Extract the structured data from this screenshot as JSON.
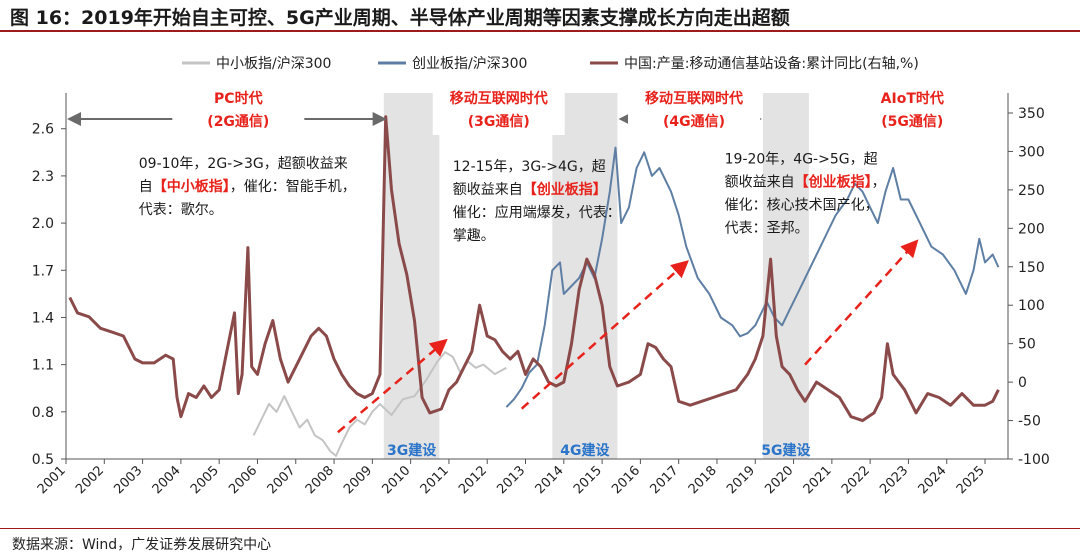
{
  "page": {
    "title": "图 16：2019年开始自主可控、5G产业周期、半导体产业周期等因素支撑成长方向走出超额",
    "source": "数据来源：Wind，广发证券发展研究中心"
  },
  "colors": {
    "series_sme": "#c4c4c4",
    "series_gem": "#5e7fa3",
    "series_base": "#8b4a4a",
    "shade": "#e3e3e3",
    "annotation_red": "#e8221b",
    "annotation_blue": "#2a74c9",
    "arrow_gray": "#6a6a6a"
  },
  "chart_data": {
    "type": "line",
    "title": "",
    "xlabel": "",
    "ylabel_left": "",
    "ylabel_right": "",
    "xlim": [
      2001.0,
      2025.6
    ],
    "ylim_left": [
      0.5,
      2.7
    ],
    "ylim_right": [
      -100,
      350
    ],
    "x_ticks": [
      "2001",
      "2002",
      "2003",
      "2004",
      "2005",
      "2006",
      "2007",
      "2008",
      "2009",
      "2010",
      "2011",
      "2012",
      "2013",
      "2014",
      "2015",
      "2016",
      "2017",
      "2018",
      "2019",
      "2020",
      "2021",
      "2022",
      "2023",
      "2024",
      "2025"
    ],
    "y_ticks_left": [
      "0.5",
      "0.8",
      "1.1",
      "1.4",
      "1.7",
      "2.0",
      "2.3",
      "2.6"
    ],
    "y_ticks_right": [
      "-100",
      "-50",
      "0",
      "50",
      "100",
      "150",
      "200",
      "250",
      "300",
      "350"
    ],
    "grid": false,
    "legend_position": "top",
    "series": [
      {
        "name": "中小板指/沪深300",
        "axis": "left",
        "color_key": "series_sme",
        "points": [
          [
            2005.9,
            0.65
          ],
          [
            2006.1,
            0.75
          ],
          [
            2006.3,
            0.85
          ],
          [
            2006.5,
            0.8
          ],
          [
            2006.7,
            0.9
          ],
          [
            2006.9,
            0.8
          ],
          [
            2007.1,
            0.7
          ],
          [
            2007.3,
            0.75
          ],
          [
            2007.5,
            0.65
          ],
          [
            2007.7,
            0.62
          ],
          [
            2007.9,
            0.55
          ],
          [
            2008.05,
            0.52
          ],
          [
            2008.2,
            0.6
          ],
          [
            2008.4,
            0.7
          ],
          [
            2008.6,
            0.75
          ],
          [
            2008.8,
            0.72
          ],
          [
            2009.0,
            0.8
          ],
          [
            2009.2,
            0.85
          ],
          [
            2009.5,
            0.78
          ],
          [
            2009.8,
            0.88
          ],
          [
            2010.1,
            0.9
          ],
          [
            2010.4,
            1.0
          ],
          [
            2010.7,
            1.12
          ],
          [
            2010.9,
            1.18
          ],
          [
            2011.1,
            1.15
          ],
          [
            2011.3,
            1.05
          ],
          [
            2011.5,
            1.12
          ],
          [
            2011.7,
            1.08
          ],
          [
            2011.9,
            1.1
          ],
          [
            2012.2,
            1.04
          ],
          [
            2012.5,
            1.08
          ]
        ]
      },
      {
        "name": "创业板指/沪深300",
        "axis": "left",
        "color_key": "series_gem",
        "points": [
          [
            2012.5,
            0.83
          ],
          [
            2012.7,
            0.88
          ],
          [
            2012.9,
            0.95
          ],
          [
            2013.1,
            1.05
          ],
          [
            2013.3,
            1.1
          ],
          [
            2013.5,
            1.35
          ],
          [
            2013.7,
            1.7
          ],
          [
            2013.9,
            1.75
          ],
          [
            2014.0,
            1.55
          ],
          [
            2014.2,
            1.6
          ],
          [
            2014.4,
            1.65
          ],
          [
            2014.6,
            1.75
          ],
          [
            2014.8,
            1.65
          ],
          [
            2015.0,
            1.9
          ],
          [
            2015.2,
            2.2
          ],
          [
            2015.35,
            2.48
          ],
          [
            2015.5,
            2.0
          ],
          [
            2015.7,
            2.1
          ],
          [
            2015.9,
            2.35
          ],
          [
            2016.1,
            2.45
          ],
          [
            2016.3,
            2.3
          ],
          [
            2016.5,
            2.35
          ],
          [
            2016.8,
            2.2
          ],
          [
            2017.0,
            2.05
          ],
          [
            2017.2,
            1.85
          ],
          [
            2017.5,
            1.65
          ],
          [
            2017.8,
            1.55
          ],
          [
            2018.1,
            1.4
          ],
          [
            2018.4,
            1.35
          ],
          [
            2018.6,
            1.28
          ],
          [
            2018.8,
            1.3
          ],
          [
            2019.0,
            1.35
          ],
          [
            2019.3,
            1.5
          ],
          [
            2019.5,
            1.4
          ],
          [
            2019.7,
            1.35
          ],
          [
            2019.9,
            1.45
          ],
          [
            2020.1,
            1.55
          ],
          [
            2020.4,
            1.7
          ],
          [
            2020.7,
            1.85
          ],
          [
            2020.9,
            1.95
          ],
          [
            2021.1,
            2.05
          ],
          [
            2021.4,
            2.15
          ],
          [
            2021.6,
            2.25
          ],
          [
            2021.8,
            2.2
          ],
          [
            2022.0,
            2.1
          ],
          [
            2022.2,
            2.0
          ],
          [
            2022.4,
            2.2
          ],
          [
            2022.6,
            2.35
          ],
          [
            2022.8,
            2.15
          ],
          [
            2023.0,
            2.15
          ],
          [
            2023.3,
            2.0
          ],
          [
            2023.6,
            1.85
          ],
          [
            2023.9,
            1.8
          ],
          [
            2024.2,
            1.7
          ],
          [
            2024.5,
            1.55
          ],
          [
            2024.7,
            1.7
          ],
          [
            2024.85,
            1.9
          ],
          [
            2025.0,
            1.75
          ],
          [
            2025.2,
            1.8
          ],
          [
            2025.35,
            1.72
          ]
        ]
      },
      {
        "name": "中国:产量:移动通信基站设备:累计同比(右轴,%)",
        "axis": "right",
        "color_key": "series_base",
        "points": [
          [
            2001.1,
            110
          ],
          [
            2001.3,
            90
          ],
          [
            2001.6,
            85
          ],
          [
            2001.9,
            70
          ],
          [
            2002.2,
            65
          ],
          [
            2002.5,
            60
          ],
          [
            2002.8,
            30
          ],
          [
            2003.0,
            25
          ],
          [
            2003.3,
            25
          ],
          [
            2003.6,
            35
          ],
          [
            2003.8,
            30
          ],
          [
            2003.9,
            -20
          ],
          [
            2004.0,
            -45
          ],
          [
            2004.2,
            -15
          ],
          [
            2004.4,
            -20
          ],
          [
            2004.6,
            -5
          ],
          [
            2004.8,
            -20
          ],
          [
            2005.0,
            -10
          ],
          [
            2005.2,
            40
          ],
          [
            2005.4,
            90
          ],
          [
            2005.5,
            -15
          ],
          [
            2005.6,
            10
          ],
          [
            2005.75,
            175
          ],
          [
            2005.85,
            20
          ],
          [
            2006.0,
            10
          ],
          [
            2006.2,
            50
          ],
          [
            2006.4,
            80
          ],
          [
            2006.6,
            30
          ],
          [
            2006.8,
            0
          ],
          [
            2007.0,
            20
          ],
          [
            2007.2,
            40
          ],
          [
            2007.4,
            60
          ],
          [
            2007.6,
            70
          ],
          [
            2007.8,
            60
          ],
          [
            2008.0,
            30
          ],
          [
            2008.2,
            10
          ],
          [
            2008.4,
            -5
          ],
          [
            2008.6,
            -15
          ],
          [
            2008.8,
            -20
          ],
          [
            2009.0,
            -15
          ],
          [
            2009.2,
            10
          ],
          [
            2009.35,
            345
          ],
          [
            2009.5,
            250
          ],
          [
            2009.7,
            180
          ],
          [
            2009.9,
            140
          ],
          [
            2010.1,
            80
          ],
          [
            2010.3,
            -20
          ],
          [
            2010.5,
            -40
          ],
          [
            2010.8,
            -35
          ],
          [
            2011.0,
            -10
          ],
          [
            2011.2,
            0
          ],
          [
            2011.4,
            20
          ],
          [
            2011.6,
            40
          ],
          [
            2011.8,
            100
          ],
          [
            2012.0,
            60
          ],
          [
            2012.2,
            55
          ],
          [
            2012.4,
            40
          ],
          [
            2012.6,
            30
          ],
          [
            2012.8,
            40
          ],
          [
            2013.0,
            10
          ],
          [
            2013.2,
            30
          ],
          [
            2013.4,
            20
          ],
          [
            2013.6,
            0
          ],
          [
            2013.8,
            -5
          ],
          [
            2014.0,
            0
          ],
          [
            2014.2,
            50
          ],
          [
            2014.4,
            120
          ],
          [
            2014.6,
            160
          ],
          [
            2014.8,
            140
          ],
          [
            2015.0,
            100
          ],
          [
            2015.2,
            20
          ],
          [
            2015.4,
            -5
          ],
          [
            2015.7,
            0
          ],
          [
            2016.0,
            10
          ],
          [
            2016.2,
            50
          ],
          [
            2016.4,
            45
          ],
          [
            2016.6,
            30
          ],
          [
            2016.8,
            20
          ],
          [
            2017.0,
            -25
          ],
          [
            2017.3,
            -30
          ],
          [
            2017.6,
            -25
          ],
          [
            2017.9,
            -20
          ],
          [
            2018.2,
            -15
          ],
          [
            2018.5,
            -10
          ],
          [
            2018.8,
            10
          ],
          [
            2019.0,
            30
          ],
          [
            2019.2,
            60
          ],
          [
            2019.4,
            160
          ],
          [
            2019.55,
            60
          ],
          [
            2019.7,
            20
          ],
          [
            2019.9,
            10
          ],
          [
            2020.1,
            -10
          ],
          [
            2020.3,
            -25
          ],
          [
            2020.6,
            0
          ],
          [
            2020.9,
            -10
          ],
          [
            2021.2,
            -20
          ],
          [
            2021.5,
            -45
          ],
          [
            2021.8,
            -50
          ],
          [
            2022.1,
            -40
          ],
          [
            2022.3,
            -20
          ],
          [
            2022.45,
            50
          ],
          [
            2022.6,
            10
          ],
          [
            2022.9,
            -10
          ],
          [
            2023.2,
            -40
          ],
          [
            2023.5,
            -15
          ],
          [
            2023.8,
            -20
          ],
          [
            2024.1,
            -30
          ],
          [
            2024.4,
            -15
          ],
          [
            2024.7,
            -30
          ],
          [
            2025.0,
            -30
          ],
          [
            2025.2,
            -25
          ],
          [
            2025.35,
            -10
          ]
        ]
      }
    ],
    "shaded_periods": [
      {
        "x0": 2009.3,
        "x1": 2010.75,
        "label": "3G建设"
      },
      {
        "x0": 2013.7,
        "x1": 2015.4,
        "label": "4G建设"
      },
      {
        "x0": 2019.2,
        "x1": 2020.4,
        "label": "5G建设"
      }
    ],
    "era_labels": [
      {
        "line1": "PC时代",
        "line2": "(2G通信)",
        "x": 2005.5,
        "arrow_from": 2001.1,
        "arrow_to": 2009.3
      },
      {
        "line1": "移动互联网时代",
        "line2": "(3G通信)",
        "x": 2012.3,
        "arrow_from": 2010.8,
        "arrow_to": 2013.6
      },
      {
        "line1": "移动互联网时代",
        "line2": "(4G通信)",
        "x": 2017.4,
        "arrow_from": 2015.5,
        "arrow_to": 2019.1
      },
      {
        "line1": "AIoT时代",
        "line2": "(5G通信)",
        "x": 2023.1,
        "arrow_from": null,
        "arrow_to": null
      }
    ],
    "annotations": [
      {
        "lines": [
          [
            {
              "t": "09-10年，2G->3G，超额收益来"
            }
          ],
          [
            {
              "t": "自"
            },
            {
              "t": "【中小板指】",
              "red": true
            },
            {
              "t": "，催化：智能手机，"
            }
          ],
          [
            {
              "t": "代表：歌尔。"
            }
          ]
        ],
        "x": 2002.9,
        "y": 2.35
      },
      {
        "lines": [
          [
            {
              "t": "12-15年，3G->4G，超"
            }
          ],
          [
            {
              "t": "额收益来自"
            },
            {
              "t": "【创业板指】",
              "red": true
            }
          ],
          [
            {
              "t": "催化：应用端爆发，代表："
            }
          ],
          [
            {
              "t": "掌趣。"
            }
          ]
        ],
        "x": 2011.1,
        "y": 2.33
      },
      {
        "lines": [
          [
            {
              "t": "19-20年，4G->5G，超"
            }
          ],
          [
            {
              "t": "额收益来自"
            },
            {
              "t": "【创业板指】",
              "red": true
            },
            {
              "t": "，"
            }
          ],
          [
            {
              "t": "催化：核心技术国产化，"
            }
          ],
          [
            {
              "t": "代表：圣邦。"
            }
          ]
        ],
        "x": 2018.2,
        "y": 2.38
      }
    ],
    "trend_arrows": [
      {
        "from": [
          2008.1,
          0.67
        ],
        "to": [
          2010.9,
          1.25
        ]
      },
      {
        "from": [
          2012.9,
          0.82
        ],
        "to": [
          2017.2,
          1.75
        ]
      },
      {
        "from": [
          2020.3,
          1.1
        ],
        "to": [
          2023.2,
          1.88
        ]
      }
    ]
  }
}
